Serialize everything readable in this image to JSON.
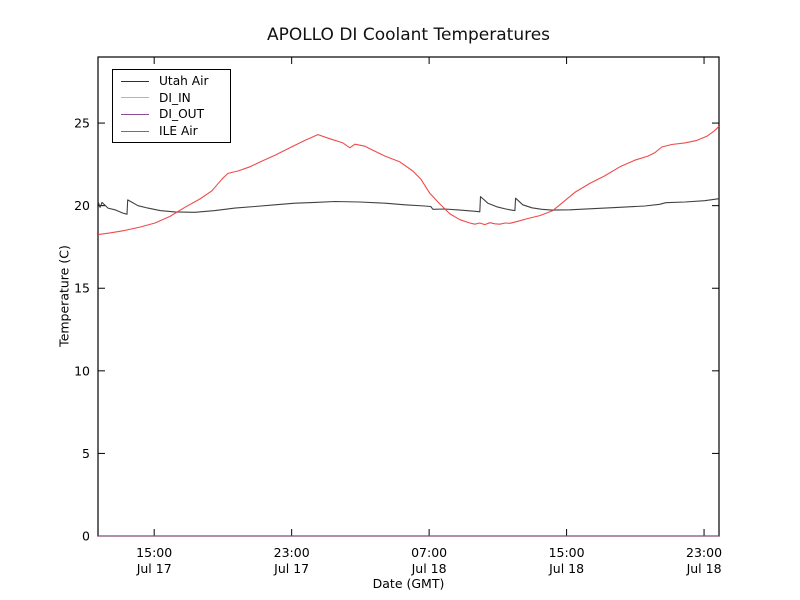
{
  "figure": {
    "title": "APOLLO DI Coolant Temperatures",
    "xlabel": "Date (GMT)",
    "ylabel": "Temperature (C)"
  },
  "chart_data": {
    "type": "line",
    "title": "APOLLO DI Coolant Temperatures",
    "xlabel": "Date (GMT)",
    "ylabel": "Temperature (C)",
    "x_unit": "hours since Jul 17 00:00 GMT",
    "xlim": [
      11.73,
      47.87
    ],
    "ylim": [
      0,
      29
    ],
    "grid": false,
    "legend_position": "upper left",
    "y_ticks": [
      0,
      5,
      10,
      15,
      20,
      25
    ],
    "x_ticks": [
      {
        "hour": 15,
        "time": "15:00",
        "date": "Jul 17"
      },
      {
        "hour": 23,
        "time": "23:00",
        "date": "Jul 17"
      },
      {
        "hour": 31,
        "time": "07:00",
        "date": "Jul 18"
      },
      {
        "hour": 39,
        "time": "15:00",
        "date": "Jul 18"
      },
      {
        "hour": 47,
        "time": "23:00",
        "date": "Jul 18"
      }
    ],
    "series": [
      {
        "name": "Utah Air",
        "color": "#303030",
        "points": [
          [
            11.73,
            20.25
          ],
          [
            11.85,
            19.9
          ],
          [
            11.96,
            20.2
          ],
          [
            12.31,
            19.85
          ],
          [
            12.72,
            19.75
          ],
          [
            13.18,
            19.55
          ],
          [
            13.42,
            19.48
          ],
          [
            13.46,
            20.35
          ],
          [
            14.06,
            20.0
          ],
          [
            14.64,
            19.85
          ],
          [
            15.34,
            19.7
          ],
          [
            16.21,
            19.62
          ],
          [
            17.37,
            19.6
          ],
          [
            18.54,
            19.7
          ],
          [
            19.7,
            19.85
          ],
          [
            20.86,
            19.95
          ],
          [
            22.03,
            20.05
          ],
          [
            23.19,
            20.15
          ],
          [
            24.35,
            20.2
          ],
          [
            25.52,
            20.25
          ],
          [
            26.97,
            20.22
          ],
          [
            28.43,
            20.15
          ],
          [
            29.59,
            20.05
          ],
          [
            30.75,
            19.98
          ],
          [
            31.1,
            19.95
          ],
          [
            31.22,
            19.78
          ],
          [
            31.92,
            19.8
          ],
          [
            32.79,
            19.73
          ],
          [
            33.78,
            19.65
          ],
          [
            33.95,
            19.63
          ],
          [
            33.99,
            20.55
          ],
          [
            34.42,
            20.15
          ],
          [
            34.94,
            19.93
          ],
          [
            35.46,
            19.8
          ],
          [
            35.87,
            19.72
          ],
          [
            35.99,
            19.7
          ],
          [
            36.03,
            20.45
          ],
          [
            36.45,
            20.05
          ],
          [
            36.98,
            19.87
          ],
          [
            37.56,
            19.78
          ],
          [
            38.14,
            19.73
          ],
          [
            39.19,
            19.75
          ],
          [
            40.64,
            19.82
          ],
          [
            42.1,
            19.9
          ],
          [
            43.55,
            19.98
          ],
          [
            44.42,
            20.08
          ],
          [
            44.77,
            20.18
          ],
          [
            45.88,
            20.22
          ],
          [
            47.04,
            20.3
          ],
          [
            47.87,
            20.42
          ]
        ]
      },
      {
        "name": "DI_IN",
        "color": "#ffa73e",
        "points": [
          [
            11.73,
            0
          ],
          [
            47.87,
            0
          ]
        ]
      },
      {
        "name": "DI_OUT",
        "color": "#8f4a96",
        "points": [
          [
            11.73,
            0
          ],
          [
            47.87,
            0
          ]
        ]
      },
      {
        "name": "ILE Air",
        "color": "#ee3c3c",
        "points": [
          [
            11.73,
            18.25
          ],
          [
            12.43,
            18.35
          ],
          [
            13.3,
            18.5
          ],
          [
            14.17,
            18.7
          ],
          [
            15.05,
            18.95
          ],
          [
            15.92,
            19.35
          ],
          [
            16.79,
            19.9
          ],
          [
            17.66,
            20.4
          ],
          [
            18.36,
            20.9
          ],
          [
            18.94,
            21.6
          ],
          [
            19.29,
            21.95
          ],
          [
            19.87,
            22.1
          ],
          [
            20.57,
            22.35
          ],
          [
            21.27,
            22.7
          ],
          [
            22.03,
            23.05
          ],
          [
            22.9,
            23.5
          ],
          [
            23.77,
            23.95
          ],
          [
            24.53,
            24.3
          ],
          [
            25.23,
            24.05
          ],
          [
            25.98,
            23.8
          ],
          [
            26.39,
            23.5
          ],
          [
            26.68,
            23.72
          ],
          [
            27.26,
            23.6
          ],
          [
            27.73,
            23.35
          ],
          [
            28.43,
            23.0
          ],
          [
            29.3,
            22.65
          ],
          [
            30.05,
            22.1
          ],
          [
            30.52,
            21.6
          ],
          [
            31.04,
            20.75
          ],
          [
            31.63,
            20.1
          ],
          [
            32.21,
            19.5
          ],
          [
            32.79,
            19.15
          ],
          [
            33.37,
            18.95
          ],
          [
            33.66,
            18.88
          ],
          [
            33.95,
            18.95
          ],
          [
            34.24,
            18.85
          ],
          [
            34.54,
            18.97
          ],
          [
            34.83,
            18.9
          ],
          [
            35.12,
            18.88
          ],
          [
            35.41,
            18.95
          ],
          [
            35.7,
            18.93
          ],
          [
            36.16,
            19.05
          ],
          [
            36.75,
            19.22
          ],
          [
            37.44,
            19.4
          ],
          [
            38.2,
            19.7
          ],
          [
            38.72,
            20.15
          ],
          [
            39.48,
            20.8
          ],
          [
            40.35,
            21.35
          ],
          [
            41.22,
            21.8
          ],
          [
            42.1,
            22.35
          ],
          [
            42.97,
            22.75
          ],
          [
            43.73,
            23.0
          ],
          [
            44.13,
            23.2
          ],
          [
            44.54,
            23.55
          ],
          [
            45.12,
            23.7
          ],
          [
            45.88,
            23.8
          ],
          [
            46.58,
            23.95
          ],
          [
            47.16,
            24.2
          ],
          [
            47.57,
            24.5
          ],
          [
            47.87,
            24.8
          ]
        ]
      }
    ]
  }
}
